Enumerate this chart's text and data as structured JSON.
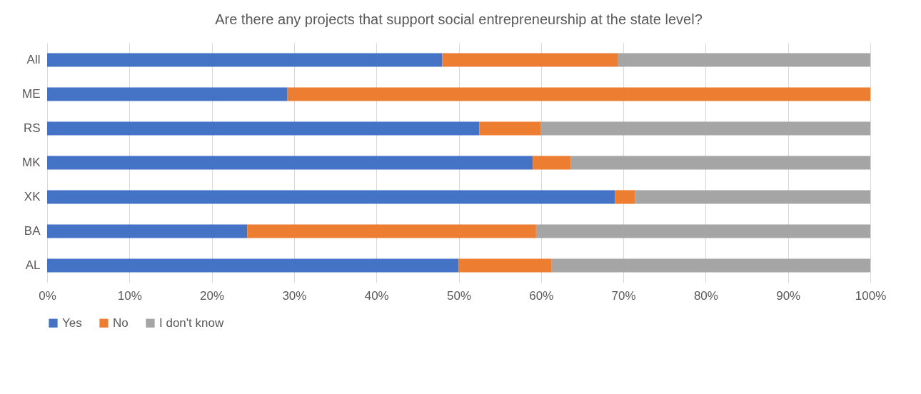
{
  "chart_data": {
    "type": "bar",
    "orientation": "horizontal",
    "stacked": true,
    "title": "Are there any projects that support social entrepreneurship at the state level?",
    "categories": [
      "All",
      "ME",
      "RS",
      "MK",
      "XK",
      "BA",
      "AL"
    ],
    "series": [
      {
        "name": "Yes",
        "color": "#4472c4",
        "values": [
          48.0,
          29.2,
          52.5,
          59.0,
          69.0,
          24.3,
          50.0
        ]
      },
      {
        "name": "No",
        "color": "#ed7d31",
        "values": [
          21.3,
          70.8,
          7.5,
          4.6,
          2.4,
          35.1,
          11.3
        ]
      },
      {
        "name": "I don't know",
        "color": "#a5a5a5",
        "values": [
          30.7,
          0,
          40.0,
          36.4,
          28.6,
          40.6,
          38.7
        ]
      }
    ],
    "xlim": [
      0,
      100
    ],
    "xticks": [
      {
        "value": 0,
        "label": "0%"
      },
      {
        "value": 10,
        "label": "10%"
      },
      {
        "value": 20,
        "label": "20%"
      },
      {
        "value": 30,
        "label": "30%"
      },
      {
        "value": 40,
        "label": "40%"
      },
      {
        "value": 50,
        "label": "50%"
      },
      {
        "value": 60,
        "label": "60%"
      },
      {
        "value": 70,
        "label": "70%"
      },
      {
        "value": 80,
        "label": "80%"
      },
      {
        "value": 90,
        "label": "90%"
      },
      {
        "value": 100,
        "label": "100%"
      }
    ],
    "grid": "x",
    "legend": "bottom"
  }
}
